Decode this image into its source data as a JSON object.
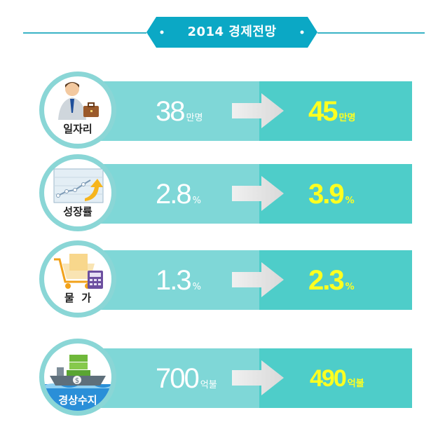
{
  "header": {
    "title": "2014 경제전망"
  },
  "rows": [
    {
      "label": "일자리",
      "icon": "businessman-icon",
      "before_value": "38",
      "before_unit": "만명",
      "after_value": "45",
      "after_unit": "만명"
    },
    {
      "label": "성장률",
      "icon": "growth-chart-icon",
      "before_value": "2.8",
      "before_unit": "%",
      "after_value": "3.9",
      "after_unit": "%"
    },
    {
      "label": "물  가",
      "icon": "shopping-cart-icon",
      "before_value": "1.3",
      "before_unit": "%",
      "after_value": "2.3",
      "after_unit": "%"
    },
    {
      "label": "경상수지",
      "icon": "cargo-ship-icon",
      "before_value": "700",
      "before_unit": "억불",
      "after_value": "490",
      "after_unit": "억불"
    }
  ],
  "colors": {
    "band_light": "#7fd7d7",
    "band_dark": "#4ecdc9",
    "accent_yellow": "#ffff20",
    "header_blue": "#0ba8c5"
  }
}
